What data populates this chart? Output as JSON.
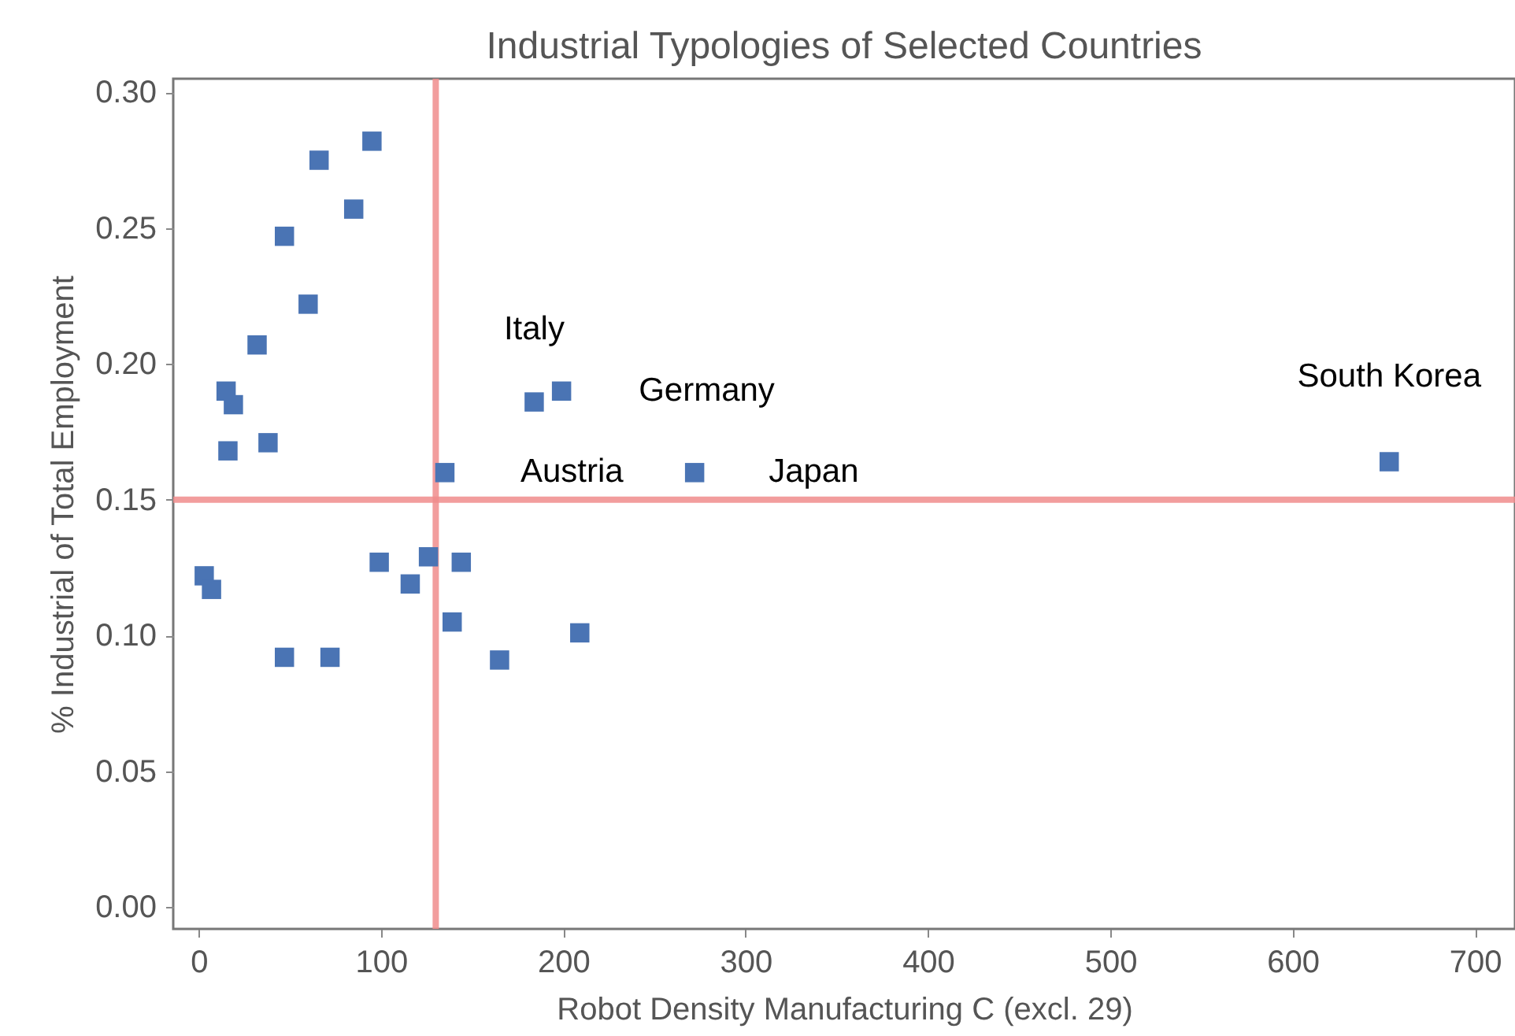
{
  "chart_data": {
    "type": "scatter",
    "title": "Industrial Typologies of Selected Countries",
    "xlabel": "Robot Density Manufacturing C (excl. 29)",
    "ylabel": "% Industrial of Total Employment",
    "xlim": [
      -14,
      722
    ],
    "ylim": [
      -0.008,
      0.305
    ],
    "xticks": [
      0,
      100,
      200,
      300,
      400,
      500,
      600,
      700
    ],
    "yticks": [
      {
        "value": 0,
        "label": "0.00"
      },
      0.05,
      {
        "value": 0.1,
        "label": "0.10"
      },
      0.15,
      {
        "value": 0.2,
        "label": "0.20"
      },
      0.25,
      {
        "value": 0.3,
        "label": "0.30"
      }
    ],
    "grid": false,
    "marker": "square",
    "series": [
      {
        "color": "#4a74b4",
        "x": [
          95,
          66,
          85,
          47,
          60,
          32,
          15,
          19,
          16,
          38,
          184,
          199,
          135,
          272,
          653,
          3,
          7,
          47,
          72,
          99,
          116,
          126,
          144,
          139,
          165,
          209
        ],
        "values": [
          0.282,
          0.275,
          0.257,
          0.247,
          0.222,
          0.207,
          0.19,
          0.185,
          0.168,
          0.171,
          0.186,
          0.19,
          0.16,
          0.16,
          0.164,
          0.122,
          0.117,
          0.092,
          0.092,
          0.127,
          0.119,
          0.129,
          0.127,
          0.105,
          0.091,
          0.101
        ]
      }
    ],
    "ref_lines": [
      {
        "axis": "x",
        "value": 130,
        "color": "#f08c8c"
      },
      {
        "axis": "y",
        "value": 0.15,
        "color": "#f08c8c"
      }
    ],
    "annotations": [
      {
        "text": "Italy",
        "x": 184,
        "y": 0.186
      },
      {
        "text": "Germany",
        "x": 199,
        "y": 0.19
      },
      {
        "text": "Austria",
        "x": 135,
        "y": 0.16
      },
      {
        "text": "Japan",
        "x": 272,
        "y": 0.16
      },
      {
        "text": "South Korea",
        "x": 653,
        "y": 0.164
      }
    ]
  }
}
